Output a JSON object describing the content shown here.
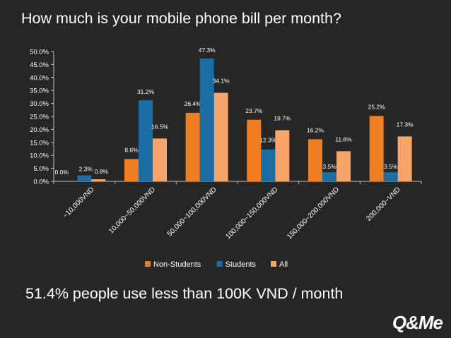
{
  "title": "How much is your mobile phone bill per month?",
  "summary": "51.4% people use less than 100K VND / month",
  "logo": "Q&Me",
  "colors": {
    "background": "#262626",
    "non_students": "#f07f23",
    "students": "#1b6ea3",
    "all": "#f6a66a",
    "axis": "#bfbfbf"
  },
  "chart_data": {
    "type": "bar",
    "categories": [
      "~10,000VND",
      "10,000~50,000VND",
      "50,000~100,000VND",
      "100,000~150,000VND",
      "150,000~200,000VND",
      "200,000~VND"
    ],
    "series": [
      {
        "name": "Non-Students",
        "values": [
          0.0,
          8.6,
          26.4,
          23.7,
          16.2,
          25.2
        ],
        "labels": [
          "0.0%",
          "8.6%",
          "26.4%",
          "23.7%",
          "16.2%",
          "25.2%"
        ]
      },
      {
        "name": "Students",
        "values": [
          2.3,
          31.2,
          47.3,
          12.3,
          3.5,
          3.5
        ],
        "labels": [
          "2.3%",
          "31.2%",
          "47.3%",
          "12.3%",
          "3.5%",
          "3.5%"
        ]
      },
      {
        "name": "All",
        "values": [
          0.8,
          16.5,
          34.1,
          19.7,
          11.6,
          17.3
        ],
        "labels": [
          "0.8%",
          "16.5%",
          "34.1%",
          "19.7%",
          "11.6%",
          "17.3%"
        ]
      }
    ],
    "yticks": [
      "0.0%",
      "5.0%",
      "10.0%",
      "15.0%",
      "20.0%",
      "25.0%",
      "30.0%",
      "35.0%",
      "40.0%",
      "45.0%",
      "50.0%"
    ],
    "ylim": [
      0,
      50
    ],
    "legend_position": "bottom",
    "grid": false
  }
}
